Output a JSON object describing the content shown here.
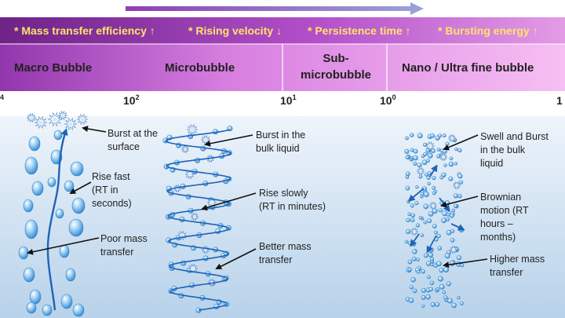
{
  "header": {
    "properties": [
      {
        "text": "* Mass transfer efficiency",
        "arrow": "↑"
      },
      {
        "text": "* Rising velocity",
        "arrow": "↓"
      },
      {
        "text": "* Persistence time",
        "arrow": "↑"
      },
      {
        "text": "* Bursting energy",
        "arrow": "↑"
      }
    ]
  },
  "categories": [
    {
      "label": "Macro Bubble"
    },
    {
      "label": "Microbubble"
    },
    {
      "label_line1": "Sub-",
      "label_line2": "microbubble"
    },
    {
      "label": "Nano / Ultra fine bubble"
    }
  ],
  "scale": {
    "ticks": [
      {
        "base": "",
        "exp": "4"
      },
      {
        "base": "10",
        "exp": "2"
      },
      {
        "base": "10",
        "exp": "1"
      },
      {
        "base": "10",
        "exp": "0"
      },
      {
        "base": "1",
        "exp": ""
      }
    ]
  },
  "annotations": {
    "macro": {
      "burst": [
        "Burst at the",
        "surface"
      ],
      "rise": [
        "Rise fast",
        "(RT in",
        "seconds)"
      ],
      "mass": [
        "Poor mass",
        "transfer"
      ]
    },
    "micro": {
      "burst": [
        "Burst in the",
        "bulk liquid"
      ],
      "rise": [
        "Rise slowly",
        "(RT in minutes)"
      ],
      "mass": [
        "Better mass",
        "transfer"
      ]
    },
    "nano": {
      "burst": [
        "Swell and Burst",
        "in the bulk",
        "liquid"
      ],
      "motion": [
        "Brownian",
        "motion (RT",
        "hours –",
        "months)"
      ],
      "mass": [
        "Higher mass",
        "transfer"
      ]
    }
  },
  "colors": {
    "header_band": "#7b2b8e",
    "category_band_left": "#9a3fb5",
    "category_band_right": "#f5b4f2",
    "property_text": "#ffe36a",
    "water_top": "#e9f1fa",
    "water_bottom": "#b9d3ea",
    "trajectory": "#1e63b8"
  }
}
